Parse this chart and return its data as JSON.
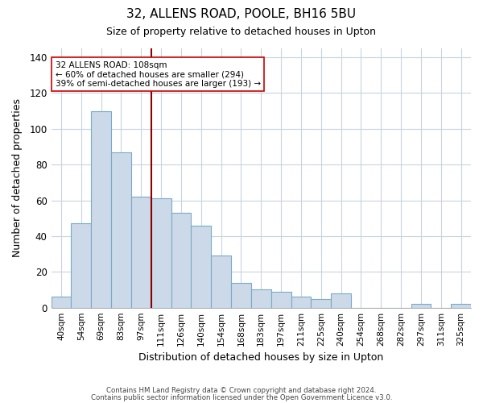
{
  "title": "32, ALLENS ROAD, POOLE, BH16 5BU",
  "subtitle": "Size of property relative to detached houses in Upton",
  "xlabel": "Distribution of detached houses by size in Upton",
  "ylabel": "Number of detached properties",
  "categories": [
    "40sqm",
    "54sqm",
    "69sqm",
    "83sqm",
    "97sqm",
    "111sqm",
    "126sqm",
    "140sqm",
    "154sqm",
    "168sqm",
    "183sqm",
    "197sqm",
    "211sqm",
    "225sqm",
    "240sqm",
    "254sqm",
    "268sqm",
    "282sqm",
    "297sqm",
    "311sqm",
    "325sqm"
  ],
  "values": [
    6,
    47,
    110,
    87,
    62,
    61,
    53,
    46,
    29,
    14,
    10,
    9,
    6,
    5,
    8,
    0,
    0,
    0,
    2,
    0,
    2
  ],
  "bar_color": "#ccd9e8",
  "bar_edge_color": "#7aaac8",
  "vline_x": 4.5,
  "vline_color": "#8b0000",
  "annotation_text": "32 ALLENS ROAD: 108sqm\n← 60% of detached houses are smaller (294)\n39% of semi-detached houses are larger (193) →",
  "ylim": [
    0,
    145
  ],
  "yticks": [
    0,
    20,
    40,
    60,
    80,
    100,
    120,
    140
  ],
  "footer_line1": "Contains HM Land Registry data © Crown copyright and database right 2024.",
  "footer_line2": "Contains public sector information licensed under the Open Government Licence v3.0.",
  "background_color": "#ffffff",
  "grid_color": "#c8d4e0"
}
